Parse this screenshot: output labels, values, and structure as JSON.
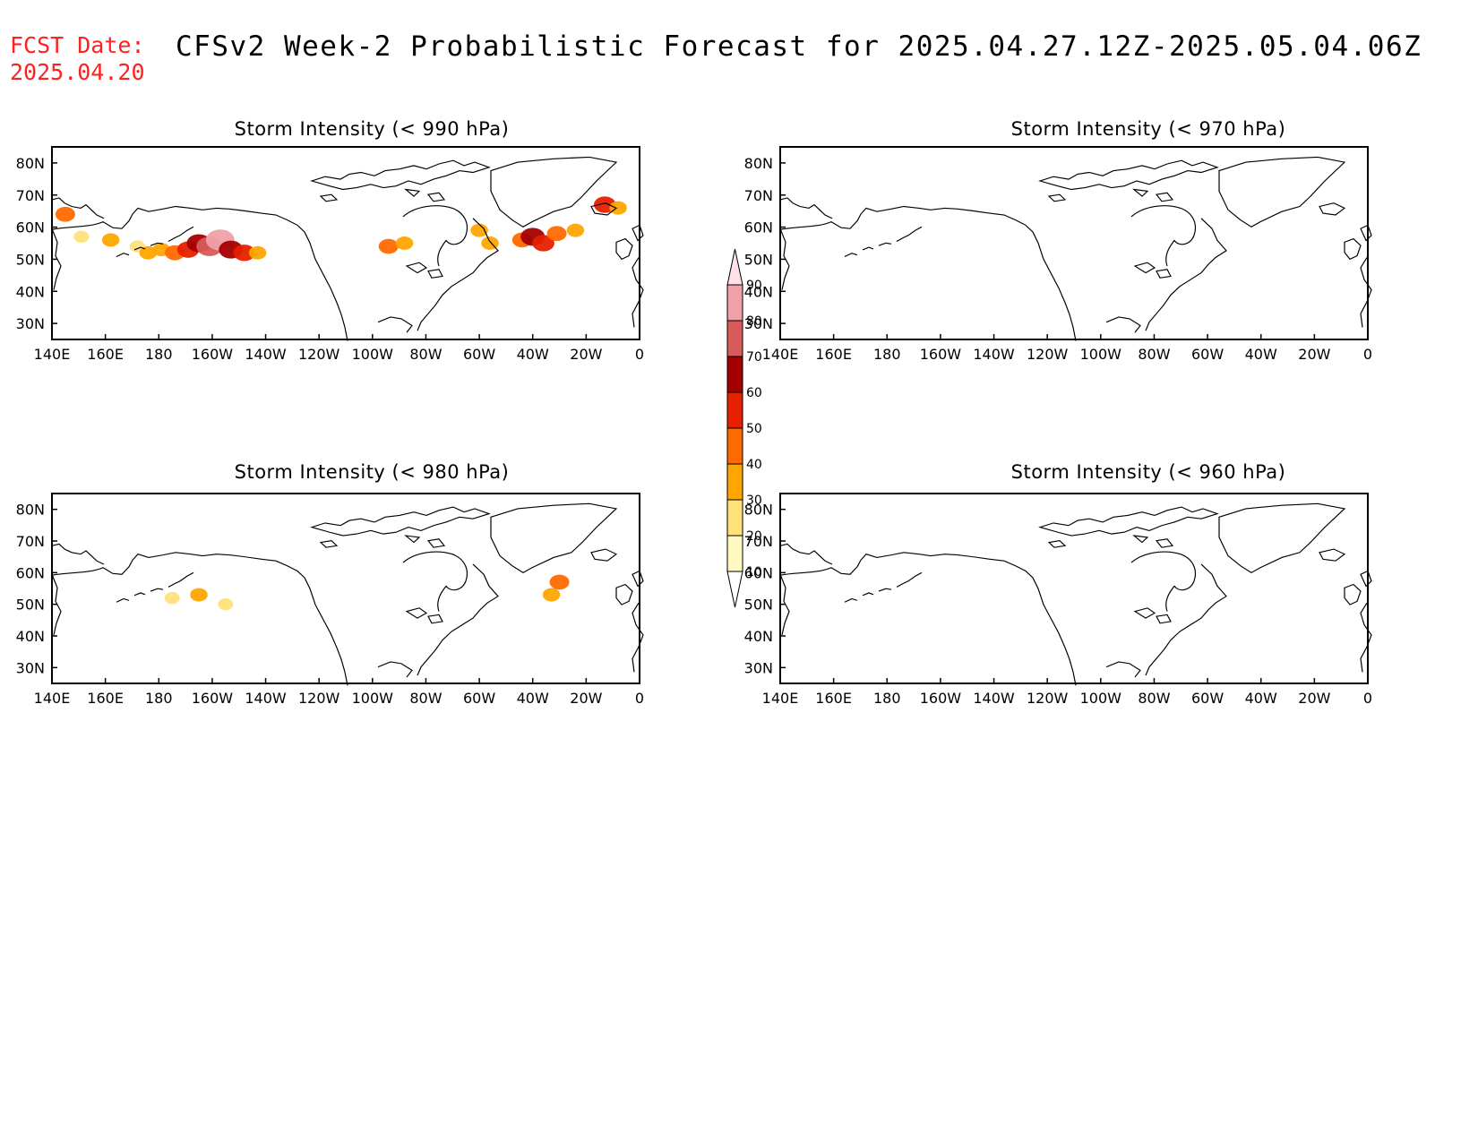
{
  "header": {
    "fcst_label": "FCST Date:",
    "fcst_date": "2025.04.20",
    "title": "CFSv2 Week-2 Probabilistic Forecast for 2025.04.27.12Z-2025.05.04.06Z"
  },
  "axes": {
    "lon_labels": [
      "140E",
      "160E",
      "180",
      "160W",
      "140W",
      "120W",
      "100W",
      "80W",
      "60W",
      "40W",
      "20W",
      "0"
    ],
    "lat_labels": [
      "80N",
      "70N",
      "60N",
      "50N",
      "40N",
      "30N"
    ],
    "lat_values": [
      80,
      70,
      60,
      50,
      40,
      30
    ],
    "lat_range": [
      25,
      85
    ]
  },
  "panels": [
    {
      "id": "p990",
      "title": "Storm Intensity (< 990 hPa)"
    },
    {
      "id": "p970",
      "title": "Storm Intensity (< 970 hPa)"
    },
    {
      "id": "p980",
      "title": "Storm Intensity (< 980 hPa)"
    },
    {
      "id": "p960",
      "title": "Storm Intensity (< 960 hPa)"
    }
  ],
  "colorbar": {
    "levels": [
      "10",
      "20",
      "30",
      "40",
      "50",
      "60",
      "70",
      "80",
      "90"
    ],
    "colors": [
      "#fff8c0",
      "#ffe27a",
      "#ffa500",
      "#ff6a00",
      "#e62000",
      "#a50000",
      "#d85a5a",
      "#f0a0a8",
      "#ffe0e6"
    ]
  },
  "chart_data": {
    "type": "heatmap",
    "units": "probability (%)",
    "panels": {
      "p990": [
        {
          "lon": 145,
          "lat": 64,
          "p": 40
        },
        {
          "lon": 151,
          "lat": 57,
          "p": 20
        },
        {
          "lon": 162,
          "lat": 56,
          "p": 30
        },
        {
          "lon": 172,
          "lat": 54,
          "p": 20
        },
        {
          "lon": 176,
          "lat": 52,
          "p": 30
        },
        {
          "lon": 181,
          "lat": 53,
          "p": 30
        },
        {
          "lon": 186,
          "lat": 52,
          "p": 40
        },
        {
          "lon": 191,
          "lat": 53,
          "p": 50
        },
        {
          "lon": 195,
          "lat": 55,
          "p": 60
        },
        {
          "lon": 199,
          "lat": 54,
          "p": 70
        },
        {
          "lon": 203,
          "lat": 56,
          "p": 80
        },
        {
          "lon": 207,
          "lat": 53,
          "p": 60
        },
        {
          "lon": 212,
          "lat": 52,
          "p": 50
        },
        {
          "lon": 217,
          "lat": 52,
          "p": 30
        },
        {
          "lon": 266,
          "lat": 54,
          "p": 40
        },
        {
          "lon": 272,
          "lat": 55,
          "p": 30
        },
        {
          "lon": 300,
          "lat": 59,
          "p": 30
        },
        {
          "lon": 304,
          "lat": 55,
          "p": 30
        },
        {
          "lon": 316,
          "lat": 56,
          "p": 40
        },
        {
          "lon": 320,
          "lat": 57,
          "p": 60
        },
        {
          "lon": 324,
          "lat": 55,
          "p": 50
        },
        {
          "lon": 329,
          "lat": 58,
          "p": 40
        },
        {
          "lon": 336,
          "lat": 59,
          "p": 30
        },
        {
          "lon": 347,
          "lat": 67,
          "p": 50
        },
        {
          "lon": 352,
          "lat": 66,
          "p": 30
        }
      ],
      "p980": [
        {
          "lon": 185,
          "lat": 52,
          "p": 20
        },
        {
          "lon": 195,
          "lat": 53,
          "p": 30
        },
        {
          "lon": 205,
          "lat": 50,
          "p": 20
        },
        {
          "lon": 327,
          "lat": 53,
          "p": 30
        },
        {
          "lon": 330,
          "lat": 57,
          "p": 40
        }
      ],
      "p970": [],
      "p960": []
    }
  }
}
